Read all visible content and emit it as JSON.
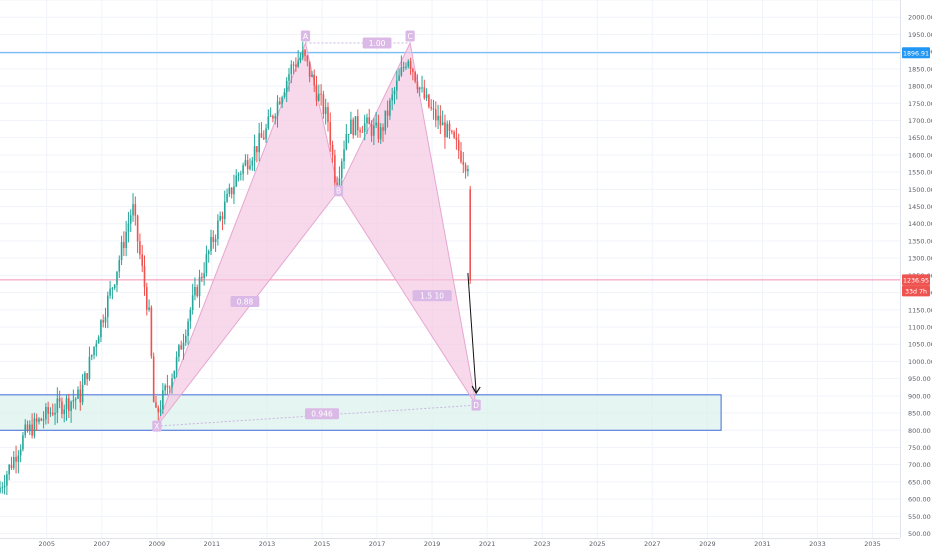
{
  "chart_data": {
    "type": "candlestick",
    "title": "",
    "xlabel": "",
    "ylabel": "",
    "x_range": [
      2003.3,
      2036.0
    ],
    "ylim": [
      487,
      2050
    ],
    "x_ticks": [
      "2005",
      "2007",
      "2009",
      "2011",
      "2013",
      "2015",
      "2017",
      "2019",
      "2021",
      "2023",
      "2025",
      "2027",
      "2029",
      "2031",
      "2033",
      "2035"
    ],
    "y_ticks": [
      500,
      550,
      600,
      650,
      700,
      750,
      800,
      850,
      900,
      950,
      1000,
      1050,
      1100,
      1150,
      1200,
      1250,
      1300,
      1350,
      1400,
      1450,
      1500,
      1550,
      1600,
      1650,
      1700,
      1750,
      1800,
      1850,
      1900,
      1950,
      2000,
      2050
    ],
    "y_tick_labels": [
      "500.00",
      "550.00",
      "600.00",
      "650.00",
      "700.00",
      "750.00",
      "800.00",
      "850.00",
      "900.00",
      "950.00",
      "1000.00",
      "1050.00",
      "1100.00",
      "1150.00",
      "1200.00",
      "1250.00",
      "1300.00",
      "1350.00",
      "1400.00",
      "1450.00",
      "1500.00",
      "1550.00",
      "1600.00",
      "1650.00",
      "1700.00",
      "1750.00",
      "1800.00",
      "1850.00",
      "1900.00",
      "1950.00",
      "2000.00",
      "2050.00"
    ],
    "grid": true,
    "colors": {
      "up": "#26a69a",
      "down": "#ef5350",
      "resistance": "#64b5f6",
      "current": "#f48fb1",
      "pattern": "#f3c4e1",
      "pattern_edge": "#e7a6d0",
      "zone_border": "#3f6ad8",
      "zone_fill": "#dcf1ec",
      "label_bg": "#dbb9e6",
      "price_tag_blue": "#2196f3",
      "price_tag_red": "#ef5350"
    },
    "anchors": [
      [
        2003.3,
        620
      ],
      [
        2004.3,
        790
      ],
      [
        2005.3,
        860
      ],
      [
        2006.3,
        900
      ],
      [
        2007.0,
        1100
      ],
      [
        2007.5,
        1230
      ],
      [
        2008.2,
        1450
      ],
      [
        2008.8,
        1130
      ],
      [
        2009.0,
        830
      ],
      [
        2009.8,
        1000
      ],
      [
        2010.3,
        1150
      ],
      [
        2010.9,
        1300
      ],
      [
        2011.4,
        1420
      ],
      [
        2012.0,
        1540
      ],
      [
        2012.5,
        1600
      ],
      [
        2013.0,
        1660
      ],
      [
        2013.5,
        1760
      ],
      [
        2014.0,
        1860
      ],
      [
        2014.4,
        1890
      ],
      [
        2014.9,
        1780
      ],
      [
        2015.3,
        1700
      ],
      [
        2015.6,
        1510
      ],
      [
        2016.0,
        1680
      ],
      [
        2016.6,
        1690
      ],
      [
        2017.2,
        1660
      ],
      [
        2017.7,
        1780
      ],
      [
        2018.2,
        1890
      ],
      [
        2018.7,
        1780
      ],
      [
        2019.1,
        1720
      ],
      [
        2019.5,
        1680
      ],
      [
        2020.0,
        1620
      ],
      [
        2020.3,
        1580
      ]
    ],
    "last_candle": {
      "open": 1500,
      "high": 1510,
      "low": 1225,
      "close": 1235
    },
    "pattern": {
      "points": [
        {
          "label": "X",
          "x": 2009.0,
          "y": 812
        },
        {
          "label": "A",
          "x": 2014.4,
          "y": 1925
        },
        {
          "label": "B",
          "x": 2015.6,
          "y": 1496
        },
        {
          "label": "C",
          "x": 2018.2,
          "y": 1925
        },
        {
          "label": "D",
          "x": 2020.6,
          "y": 873
        }
      ],
      "ratios": [
        {
          "text": "0.88",
          "x": 2012.2,
          "y": 1174
        },
        {
          "text": "1.00",
          "x": 2017.0,
          "y": 1925
        },
        {
          "text": "1.5 10",
          "x": 2019.0,
          "y": 1191
        },
        {
          "text": "0.946",
          "x": 2015.0,
          "y": 848
        }
      ]
    },
    "resistance": {
      "value": 1896.91,
      "label": "1896.91"
    },
    "current": {
      "value": 1236.95,
      "label": "1236.95",
      "countdown": "33d 7h"
    },
    "zone": {
      "x_start": 2003.3,
      "x_end": 2029.5,
      "y_low": 800,
      "y_high": 903
    },
    "arrow": {
      "x1": 2020.3,
      "y1": 1257,
      "x2": 2020.6,
      "y2": 908
    }
  }
}
